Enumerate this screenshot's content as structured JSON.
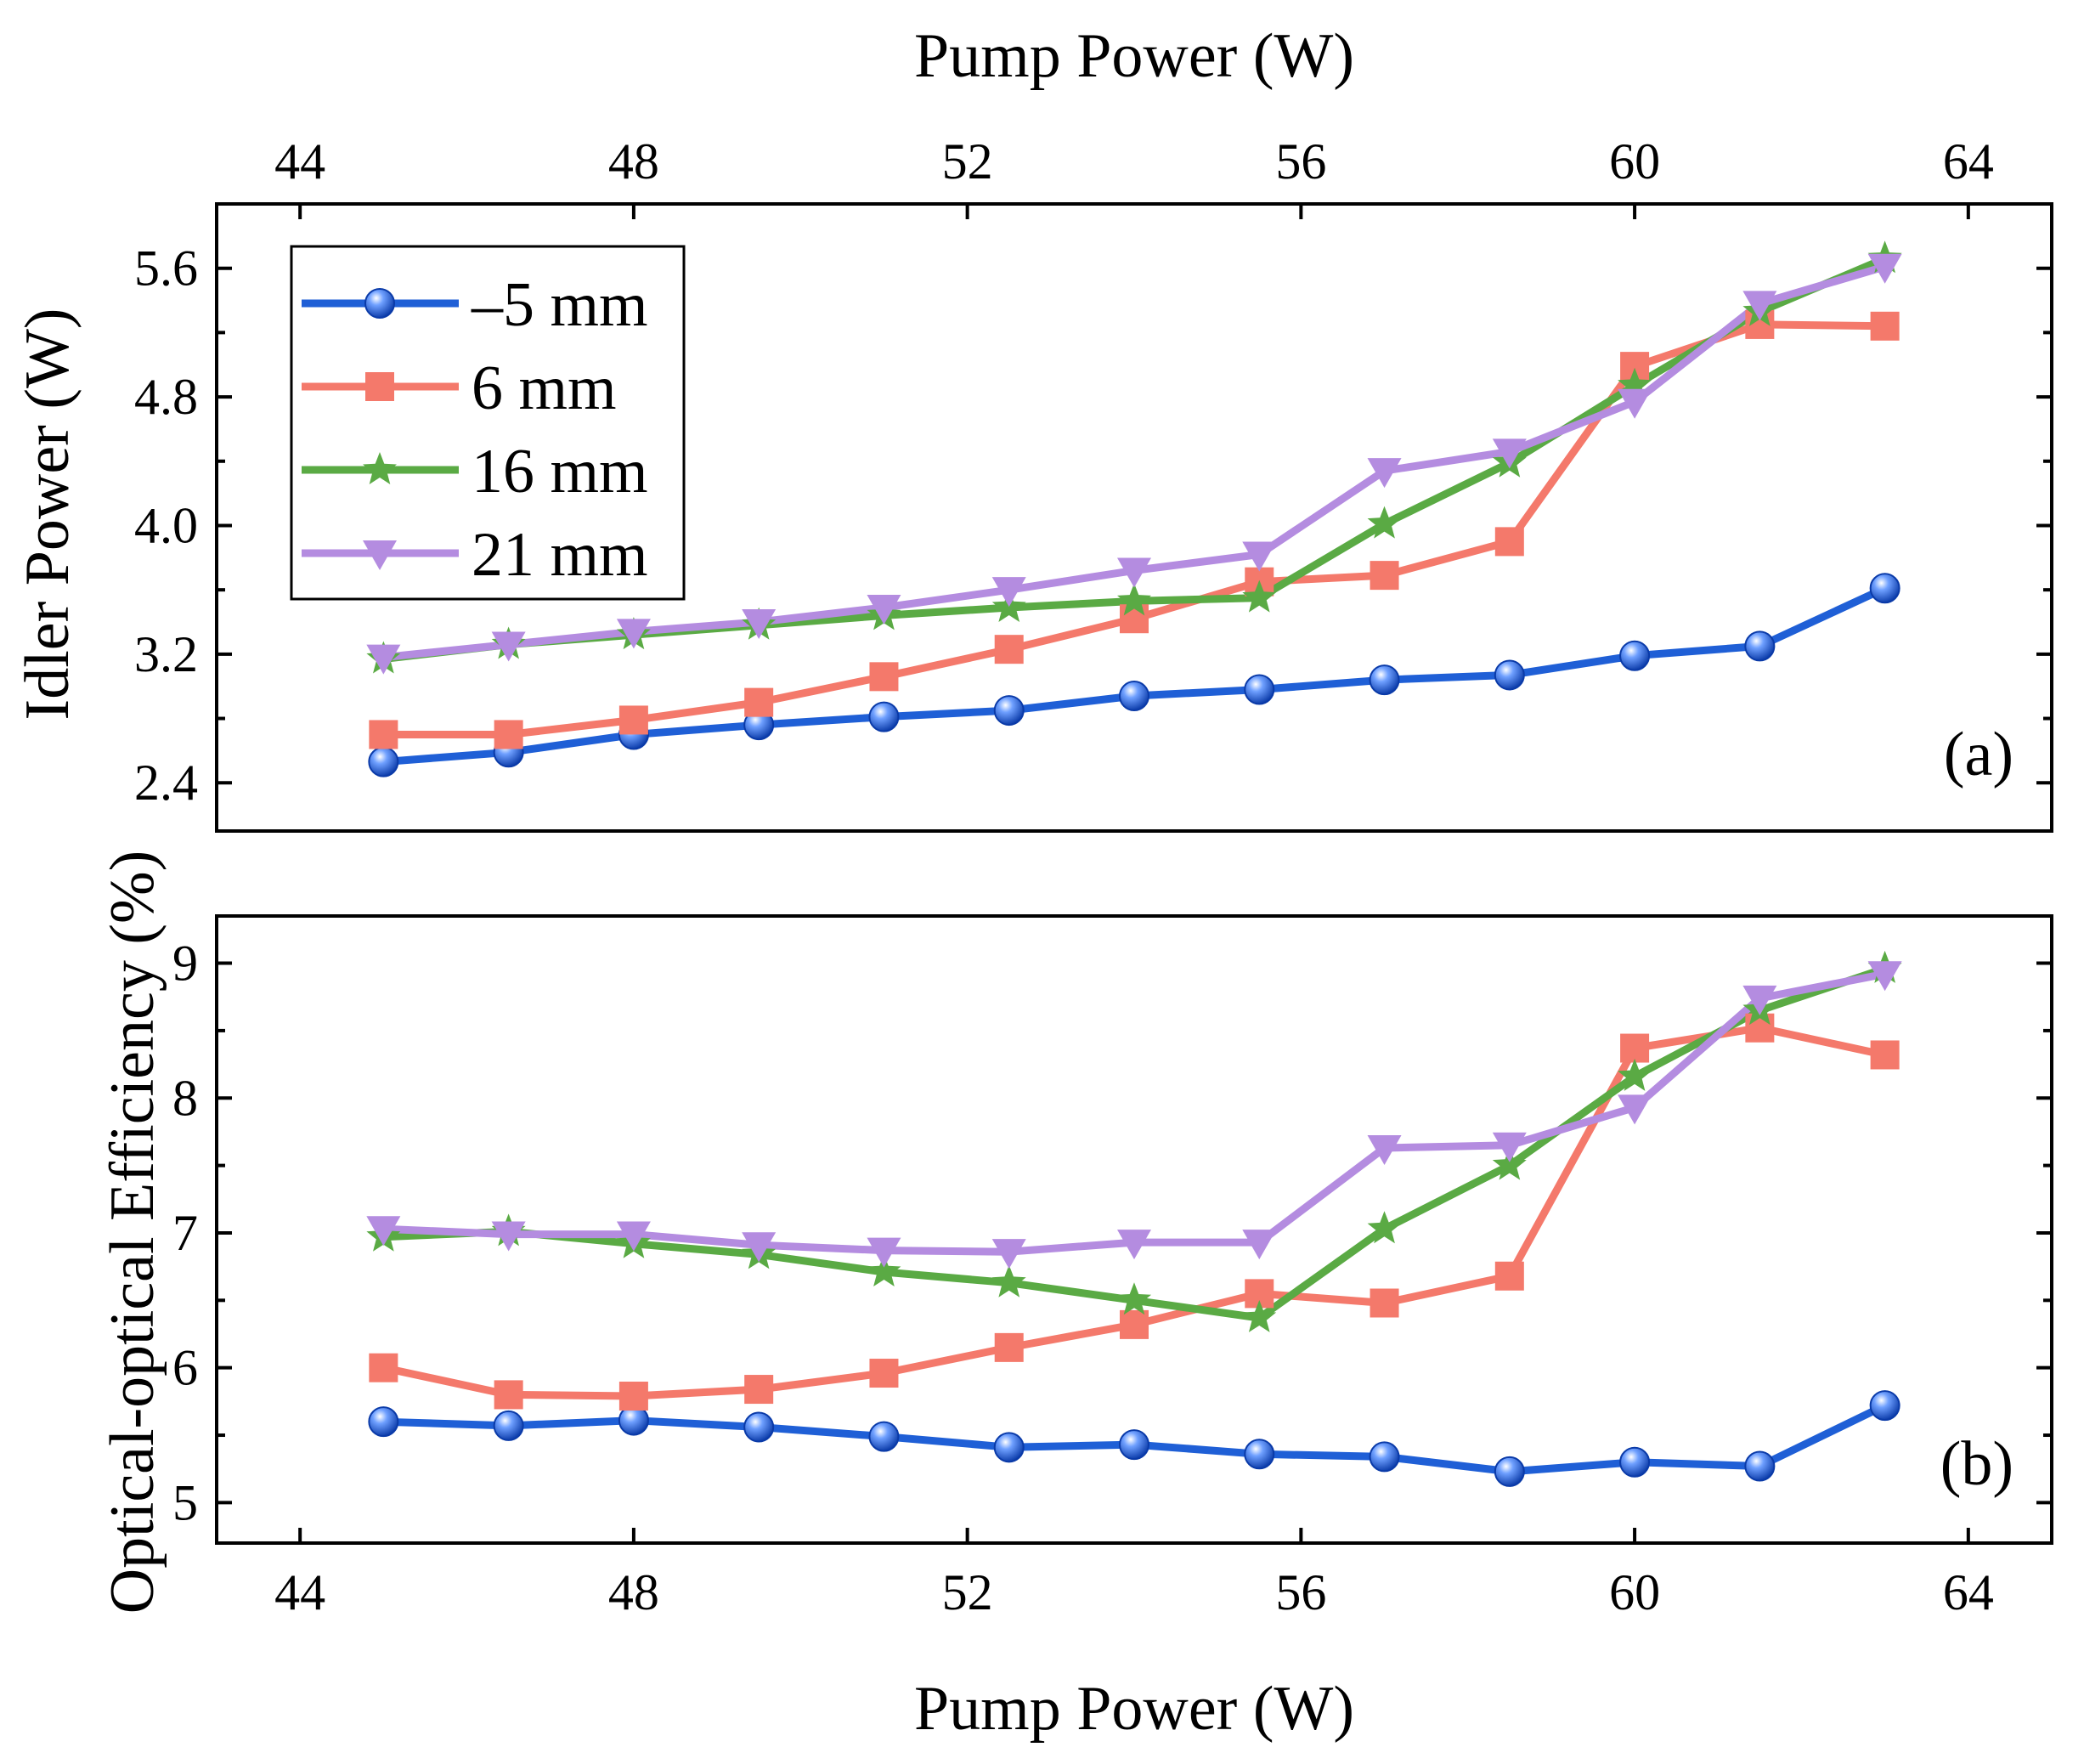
{
  "chart_data": [
    {
      "panel": "top",
      "type": "line",
      "panel_label": "(a)",
      "title": "",
      "xlabel": "Pump Power (W)",
      "ylabel": "Idler Power (W)",
      "xlim": [
        43,
        65
      ],
      "ylim": [
        2.1,
        6.0
      ],
      "xticks": [
        44,
        48,
        52,
        56,
        60,
        64
      ],
      "yticks": [
        2.4,
        3.2,
        4.0,
        4.8,
        5.6
      ],
      "ytick_labels": [
        "2.4",
        "3.2",
        "4.0",
        "4.8",
        "5.6"
      ],
      "x": [
        45,
        46.5,
        48,
        49.5,
        51,
        52.5,
        54,
        55.5,
        57,
        58.5,
        60,
        61.5,
        63
      ],
      "legend_position": "top-left",
      "series": [
        {
          "name": "–5 mm",
          "color": "#1f5fd6",
          "marker": "circle",
          "values": [
            2.53,
            2.59,
            2.7,
            2.76,
            2.81,
            2.85,
            2.94,
            2.98,
            3.04,
            3.07,
            3.19,
            3.25,
            3.61
          ]
        },
        {
          "name": "6 mm",
          "color": "#f4796b",
          "marker": "square",
          "values": [
            2.7,
            2.7,
            2.79,
            2.9,
            3.06,
            3.23,
            3.42,
            3.65,
            3.69,
            3.9,
            4.99,
            5.25,
            5.24
          ]
        },
        {
          "name": "16 mm",
          "color": "#5aaa44",
          "marker": "star",
          "values": [
            3.17,
            3.26,
            3.32,
            3.38,
            3.44,
            3.49,
            3.53,
            3.55,
            4.01,
            4.39,
            4.87,
            5.33,
            5.66
          ]
        },
        {
          "name": "21 mm",
          "color": "#b48ce0",
          "marker": "triangle-down",
          "values": [
            3.18,
            3.26,
            3.34,
            3.4,
            3.49,
            3.6,
            3.72,
            3.82,
            4.34,
            4.46,
            4.77,
            5.38,
            5.61
          ]
        }
      ]
    },
    {
      "panel": "bottom",
      "type": "line",
      "panel_label": "(b)",
      "title": "",
      "xlabel": "Pump Power (W)",
      "ylabel": "Optical-optical Efficiency (%)",
      "xlim": [
        43,
        65
      ],
      "ylim": [
        4.7,
        9.35
      ],
      "xticks": [
        44,
        48,
        52,
        56,
        60,
        64
      ],
      "yticks": [
        5,
        6,
        7,
        8,
        9
      ],
      "ytick_labels": [
        "5",
        "6",
        "7",
        "8",
        "9"
      ],
      "x": [
        45,
        46.5,
        48,
        49.5,
        51,
        52.5,
        54,
        55.5,
        57,
        58.5,
        60,
        61.5,
        63
      ],
      "series": [
        {
          "name": "–5 mm",
          "color": "#1f5fd6",
          "marker": "circle",
          "values": [
            5.6,
            5.57,
            5.61,
            5.56,
            5.49,
            5.41,
            5.43,
            5.36,
            5.34,
            5.23,
            5.3,
            5.27,
            5.72
          ]
        },
        {
          "name": "6 mm",
          "color": "#f4796b",
          "marker": "square",
          "values": [
            6.0,
            5.8,
            5.79,
            5.84,
            5.96,
            6.15,
            6.32,
            6.55,
            6.48,
            6.68,
            8.37,
            8.52,
            8.32
          ]
        },
        {
          "name": "16 mm",
          "color": "#5aaa44",
          "marker": "star",
          "values": [
            6.97,
            7.01,
            6.92,
            6.84,
            6.71,
            6.63,
            6.5,
            6.37,
            7.03,
            7.5,
            8.16,
            8.65,
            8.96
          ]
        },
        {
          "name": "21 mm",
          "color": "#b48ce0",
          "marker": "triangle-down",
          "values": [
            7.03,
            6.99,
            6.99,
            6.91,
            6.87,
            6.86,
            6.93,
            6.93,
            7.63,
            7.65,
            7.93,
            8.74,
            8.92
          ]
        }
      ]
    }
  ]
}
